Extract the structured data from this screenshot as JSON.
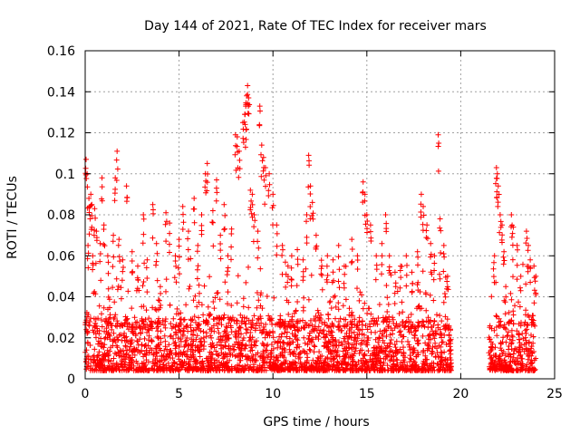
{
  "chart_data": {
    "type": "scatter",
    "title": "Day 144 of 2021, Rate Of TEC Index for receiver mars",
    "xlabel": "GPS time / hours",
    "ylabel": "ROTI / TECUs",
    "xlim": [
      0,
      25
    ],
    "ylim": [
      0,
      0.16
    ],
    "x_ticks": [
      0,
      5,
      10,
      15,
      20,
      25
    ],
    "y_ticks": [
      0,
      0.02,
      0.04,
      0.06,
      0.08,
      0.1,
      0.12,
      0.14,
      0.16
    ],
    "x_tick_labels": [
      "0",
      "5",
      "10",
      "15",
      "20",
      "25"
    ],
    "y_tick_labels": [
      "0",
      "0.02",
      "0.04",
      "0.06",
      "0.08",
      "0.1",
      "0.12",
      "0.14",
      "0.16"
    ],
    "grid": true,
    "marker": "+",
    "color": "#ff0000",
    "series": [
      {
        "name": "ROTI",
        "segments": [
          {
            "x_start": 0.0,
            "x_end": 19.5,
            "base_low": 0.004,
            "base_high": 0.03
          },
          {
            "x_start": 21.5,
            "x_end": 24.0,
            "base_low": 0.004,
            "base_high": 0.028
          }
        ],
        "points": [
          {
            "x": 0.05,
            "y": 0.107
          },
          {
            "x": 0.1,
            "y": 0.1
          },
          {
            "x": 0.2,
            "y": 0.088
          },
          {
            "x": 0.3,
            "y": 0.09
          },
          {
            "x": 0.35,
            "y": 0.085
          },
          {
            "x": 0.5,
            "y": 0.083
          },
          {
            "x": 0.15,
            "y": 0.065
          },
          {
            "x": 0.4,
            "y": 0.06
          },
          {
            "x": 0.6,
            "y": 0.072
          },
          {
            "x": 0.8,
            "y": 0.066
          },
          {
            "x": 0.9,
            "y": 0.098
          },
          {
            "x": 1.0,
            "y": 0.075
          },
          {
            "x": 1.2,
            "y": 0.06
          },
          {
            "x": 1.5,
            "y": 0.07
          },
          {
            "x": 1.6,
            "y": 0.098
          },
          {
            "x": 1.7,
            "y": 0.111
          },
          {
            "x": 1.8,
            "y": 0.068
          },
          {
            "x": 2.0,
            "y": 0.058
          },
          {
            "x": 2.2,
            "y": 0.094
          },
          {
            "x": 2.5,
            "y": 0.062
          },
          {
            "x": 2.8,
            "y": 0.055
          },
          {
            "x": 3.1,
            "y": 0.08
          },
          {
            "x": 3.3,
            "y": 0.058
          },
          {
            "x": 3.6,
            "y": 0.085
          },
          {
            "x": 3.8,
            "y": 0.066
          },
          {
            "x": 4.0,
            "y": 0.045
          },
          {
            "x": 4.3,
            "y": 0.081
          },
          {
            "x": 4.5,
            "y": 0.076
          },
          {
            "x": 4.8,
            "y": 0.06
          },
          {
            "x": 5.0,
            "y": 0.068
          },
          {
            "x": 5.2,
            "y": 0.084
          },
          {
            "x": 5.5,
            "y": 0.072
          },
          {
            "x": 5.8,
            "y": 0.088
          },
          {
            "x": 6.0,
            "y": 0.065
          },
          {
            "x": 6.2,
            "y": 0.08
          },
          {
            "x": 6.4,
            "y": 0.1
          },
          {
            "x": 6.5,
            "y": 0.105
          },
          {
            "x": 6.8,
            "y": 0.082
          },
          {
            "x": 7.0,
            "y": 0.097
          },
          {
            "x": 7.2,
            "y": 0.07
          },
          {
            "x": 7.4,
            "y": 0.085
          },
          {
            "x": 7.6,
            "y": 0.06
          },
          {
            "x": 7.8,
            "y": 0.073
          },
          {
            "x": 8.0,
            "y": 0.119
          },
          {
            "x": 8.1,
            "y": 0.118
          },
          {
            "x": 8.2,
            "y": 0.111
          },
          {
            "x": 8.4,
            "y": 0.125
          },
          {
            "x": 8.5,
            "y": 0.129
          },
          {
            "x": 8.55,
            "y": 0.133
          },
          {
            "x": 8.6,
            "y": 0.138
          },
          {
            "x": 8.65,
            "y": 0.143
          },
          {
            "x": 8.7,
            "y": 0.137
          },
          {
            "x": 8.8,
            "y": 0.092
          },
          {
            "x": 8.9,
            "y": 0.09
          },
          {
            "x": 9.0,
            "y": 0.08
          },
          {
            "x": 9.2,
            "y": 0.072
          },
          {
            "x": 9.3,
            "y": 0.133
          },
          {
            "x": 9.4,
            "y": 0.114
          },
          {
            "x": 9.5,
            "y": 0.108
          },
          {
            "x": 9.6,
            "y": 0.103
          },
          {
            "x": 9.8,
            "y": 0.1
          },
          {
            "x": 10.0,
            "y": 0.09
          },
          {
            "x": 10.2,
            "y": 0.075
          },
          {
            "x": 10.5,
            "y": 0.065
          },
          {
            "x": 10.8,
            "y": 0.055
          },
          {
            "x": 11.0,
            "y": 0.06
          },
          {
            "x": 11.3,
            "y": 0.063
          },
          {
            "x": 11.6,
            "y": 0.058
          },
          {
            "x": 11.8,
            "y": 0.08
          },
          {
            "x": 11.9,
            "y": 0.109
          },
          {
            "x": 12.0,
            "y": 0.094
          },
          {
            "x": 12.1,
            "y": 0.086
          },
          {
            "x": 12.3,
            "y": 0.07
          },
          {
            "x": 12.6,
            "y": 0.055
          },
          {
            "x": 12.9,
            "y": 0.06
          },
          {
            "x": 13.2,
            "y": 0.058
          },
          {
            "x": 13.5,
            "y": 0.065
          },
          {
            "x": 13.8,
            "y": 0.055
          },
          {
            "x": 14.2,
            "y": 0.068
          },
          {
            "x": 14.5,
            "y": 0.06
          },
          {
            "x": 14.8,
            "y": 0.096
          },
          {
            "x": 14.9,
            "y": 0.09
          },
          {
            "x": 15.0,
            "y": 0.08
          },
          {
            "x": 15.2,
            "y": 0.075
          },
          {
            "x": 15.5,
            "y": 0.06
          },
          {
            "x": 15.8,
            "y": 0.066
          },
          {
            "x": 16.0,
            "y": 0.08
          },
          {
            "x": 16.2,
            "y": 0.06
          },
          {
            "x": 16.5,
            "y": 0.052
          },
          {
            "x": 16.8,
            "y": 0.055
          },
          {
            "x": 17.1,
            "y": 0.06
          },
          {
            "x": 17.4,
            "y": 0.052
          },
          {
            "x": 17.7,
            "y": 0.062
          },
          {
            "x": 17.9,
            "y": 0.09
          },
          {
            "x": 18.0,
            "y": 0.084
          },
          {
            "x": 18.2,
            "y": 0.075
          },
          {
            "x": 18.4,
            "y": 0.066
          },
          {
            "x": 18.6,
            "y": 0.06
          },
          {
            "x": 18.8,
            "y": 0.119
          },
          {
            "x": 18.9,
            "y": 0.078
          },
          {
            "x": 19.1,
            "y": 0.065
          },
          {
            "x": 19.3,
            "y": 0.05
          },
          {
            "x": 21.9,
            "y": 0.103
          },
          {
            "x": 21.95,
            "y": 0.1
          },
          {
            "x": 22.0,
            "y": 0.094
          },
          {
            "x": 22.1,
            "y": 0.08
          },
          {
            "x": 22.2,
            "y": 0.075
          },
          {
            "x": 21.8,
            "y": 0.06
          },
          {
            "x": 22.3,
            "y": 0.062
          },
          {
            "x": 22.4,
            "y": 0.045
          },
          {
            "x": 22.7,
            "y": 0.08
          },
          {
            "x": 22.8,
            "y": 0.074
          },
          {
            "x": 23.0,
            "y": 0.065
          },
          {
            "x": 23.2,
            "y": 0.05
          },
          {
            "x": 23.5,
            "y": 0.072
          },
          {
            "x": 23.6,
            "y": 0.065
          },
          {
            "x": 23.7,
            "y": 0.058
          },
          {
            "x": 23.9,
            "y": 0.055
          },
          {
            "x": 24.0,
            "y": 0.05
          }
        ]
      }
    ]
  }
}
